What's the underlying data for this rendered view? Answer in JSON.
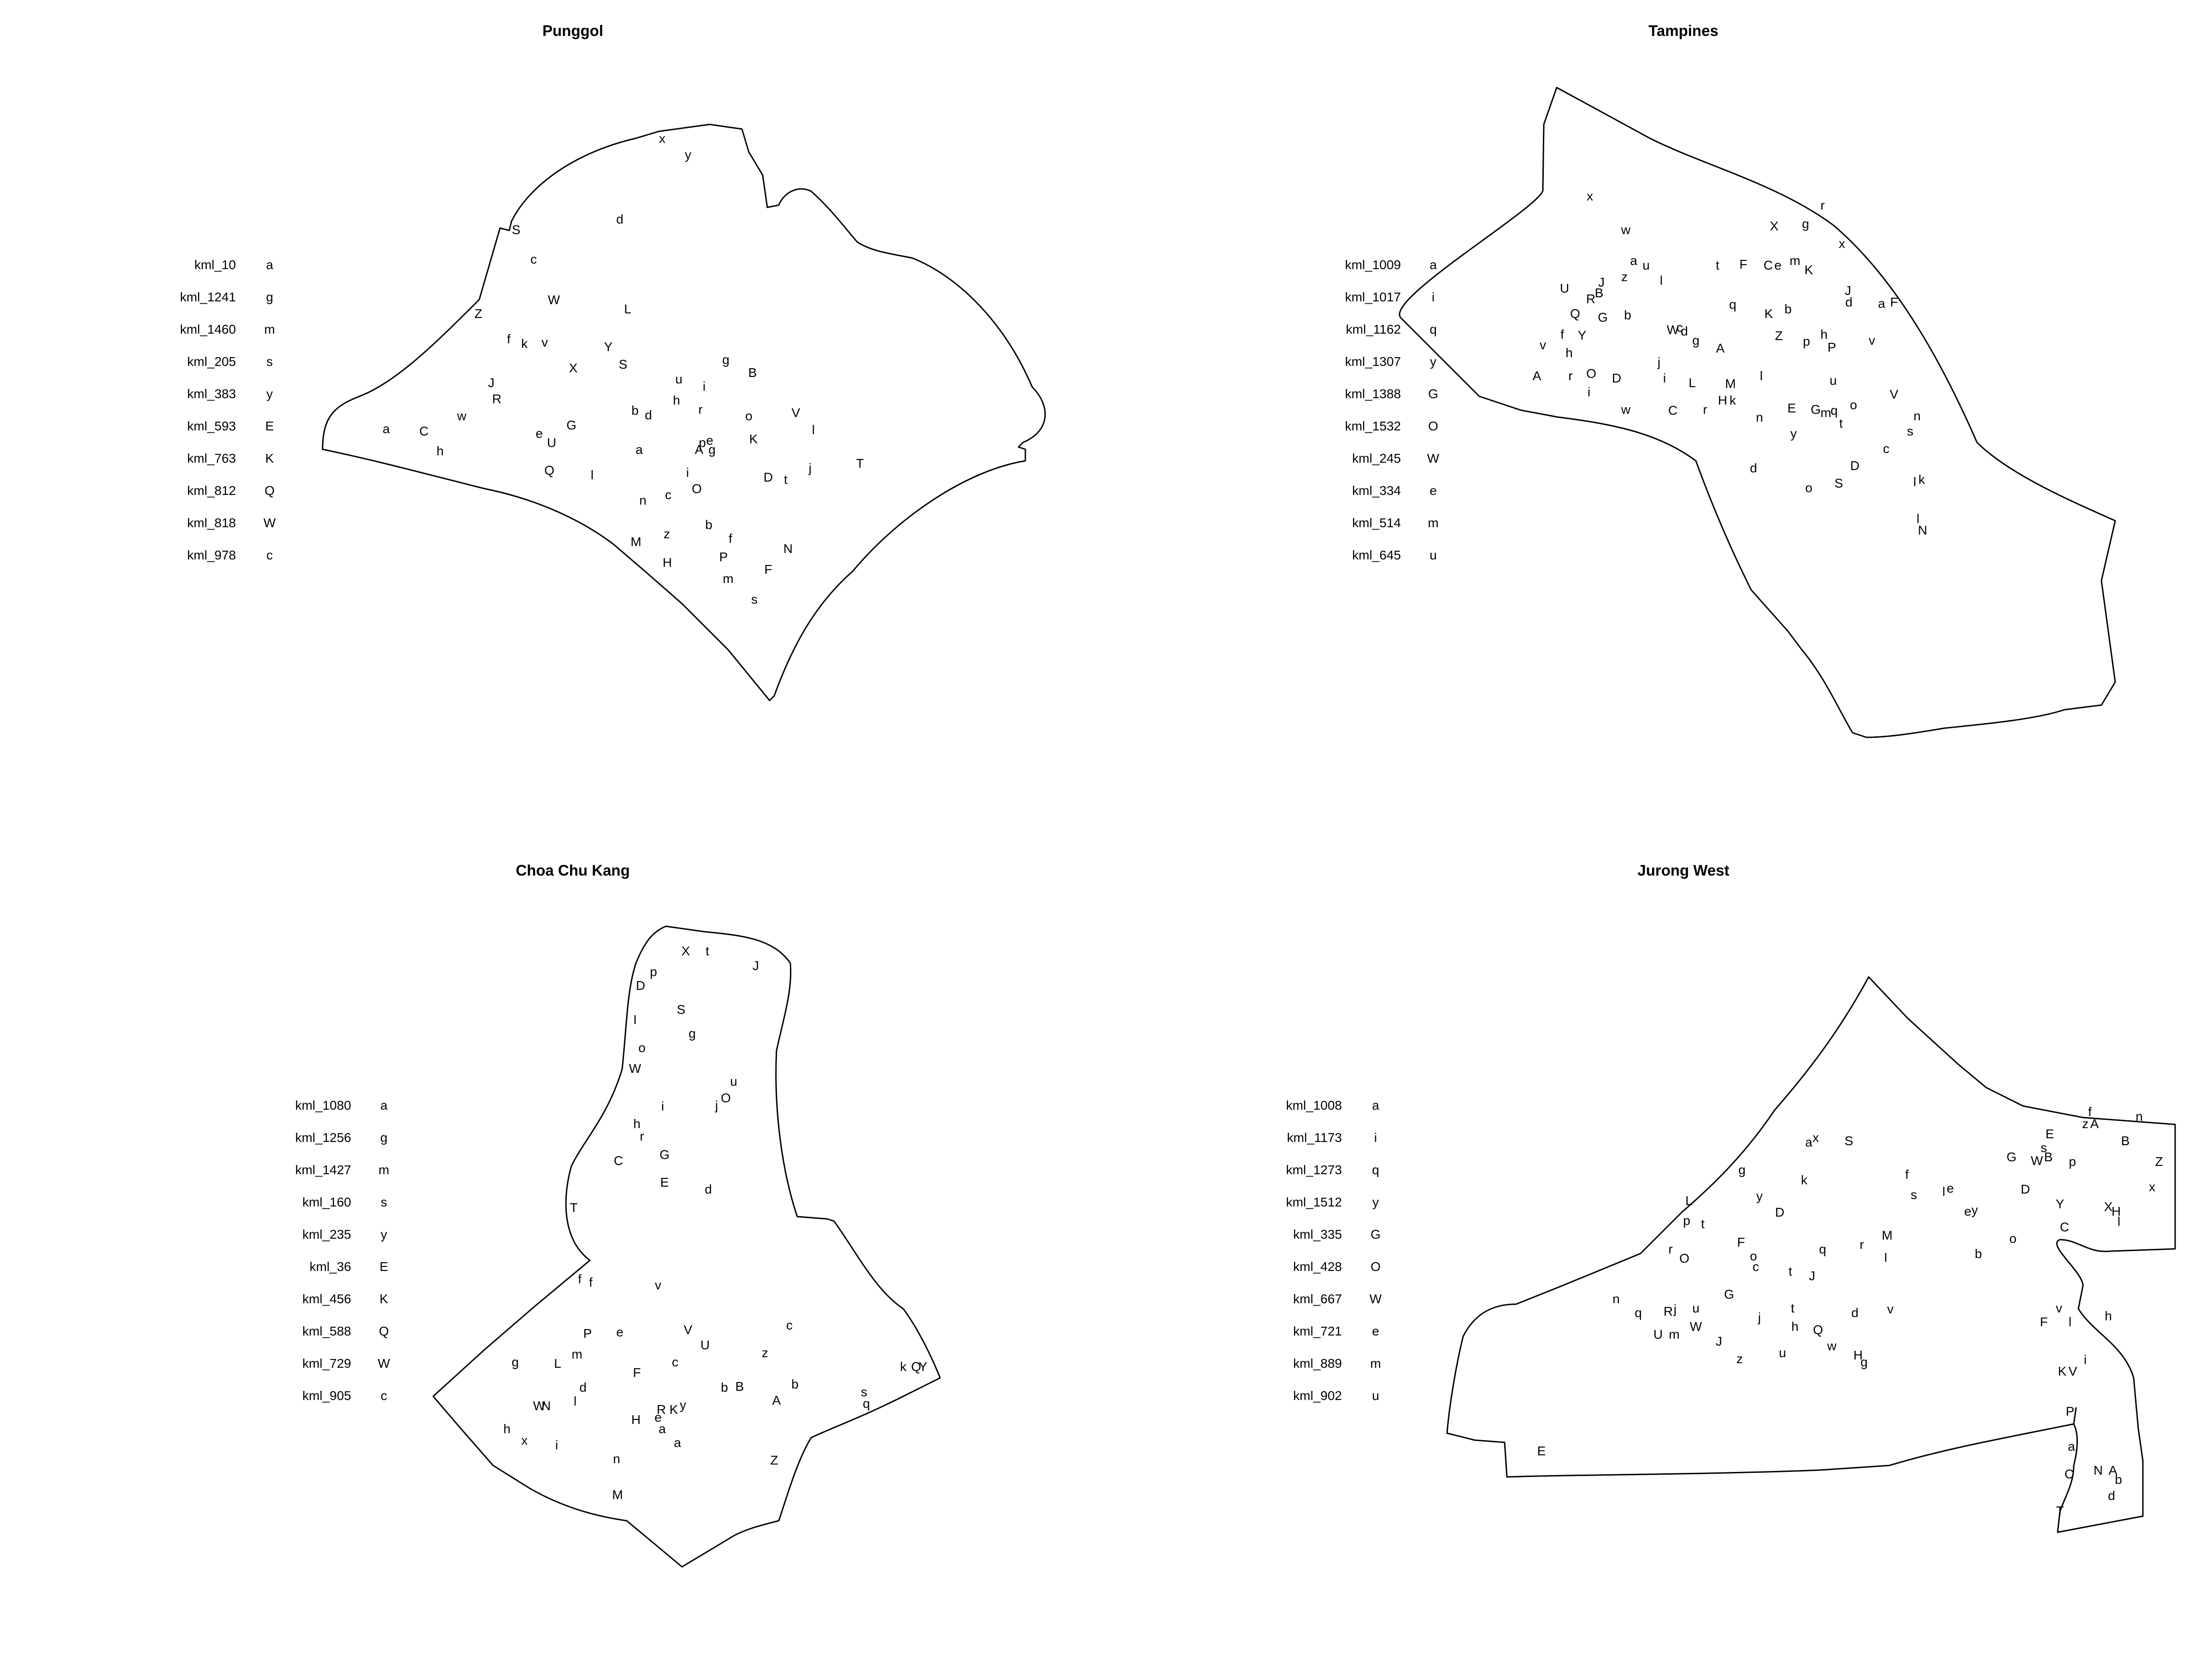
{
  "panels": [
    {
      "id": "punggol",
      "title": "Punggol",
      "legend": [
        {
          "code": "kml_10",
          "letter": "a"
        },
        {
          "code": "kml_1241",
          "letter": "g"
        },
        {
          "code": "kml_1460",
          "letter": "m"
        },
        {
          "code": "kml_205",
          "letter": "s"
        },
        {
          "code": "kml_383",
          "letter": "y"
        },
        {
          "code": "kml_593",
          "letter": "E"
        },
        {
          "code": "kml_763",
          "letter": "K"
        },
        {
          "code": "kml_812",
          "letter": "Q"
        },
        {
          "code": "kml_818",
          "letter": "W"
        },
        {
          "code": "kml_978",
          "letter": "c"
        }
      ],
      "labels": "x y d S c W L Z f k v Y X S J R g B u i h r b d o V w a C G e U l A p e g K h a i Q O j t T l D n c M z b f N H P F m s"
    },
    {
      "id": "tampines",
      "title": "Tampines",
      "legend": [
        {
          "code": "kml_1009",
          "letter": "a"
        },
        {
          "code": "kml_1017",
          "letter": "i"
        },
        {
          "code": "kml_1162",
          "letter": "q"
        },
        {
          "code": "kml_1307",
          "letter": "y"
        },
        {
          "code": "kml_1388",
          "letter": "G"
        },
        {
          "code": "kml_1532",
          "letter": "O"
        },
        {
          "code": "kml_245",
          "letter": "W"
        },
        {
          "code": "kml_334",
          "letter": "e"
        },
        {
          "code": "kml_514",
          "letter": "m"
        },
        {
          "code": "kml_645",
          "letter": "u"
        }
      ],
      "labels": "x r w X g x a u z l t F C e m K U R B J J Q G b q K b J d a F v Y W c d g Z p h P v h p u A j i L M l v A r O D n E G m q f o V i w C r H k s n y t c D d o S O l k l N"
    },
    {
      "id": "choa-chu-kang",
      "title": "Choa Chu Kang",
      "legend": [
        {
          "code": "kml_1080",
          "letter": "a"
        },
        {
          "code": "kml_1256",
          "letter": "g"
        },
        {
          "code": "kml_1427",
          "letter": "m"
        },
        {
          "code": "kml_160",
          "letter": "s"
        },
        {
          "code": "kml_235",
          "letter": "y"
        },
        {
          "code": "kml_36",
          "letter": "E"
        },
        {
          "code": "kml_456",
          "letter": "K"
        },
        {
          "code": "kml_588",
          "letter": "Q"
        },
        {
          "code": "kml_729",
          "letter": "W"
        },
        {
          "code": "kml_905",
          "letter": "c"
        }
      ],
      "labels": "X t J D p S I g o W u j O i h r G C E d T f f v P e V c g L m U z e l d F c A b B s Q Y R K y a W N h x i n Z M"
    },
    {
      "id": "jurong-west",
      "title": "Jurong West",
      "legend": [
        {
          "code": "kml_1008",
          "letter": "a"
        },
        {
          "code": "kml_1173",
          "letter": "i"
        },
        {
          "code": "kml_1273",
          "letter": "q"
        },
        {
          "code": "kml_1512",
          "letter": "y"
        },
        {
          "code": "kml_335",
          "letter": "G"
        },
        {
          "code": "kml_428",
          "letter": "O"
        },
        {
          "code": "kml_667",
          "letter": "W"
        },
        {
          "code": "kml_721",
          "letter": "e"
        },
        {
          "code": "kml_889",
          "letter": "m"
        },
        {
          "code": "kml_902",
          "letter": "u"
        }
      ],
      "labels": "f n z A a x S B E s G W B p Z g k f y l e D x X H L p t D y M C Y o r O F o c t J v G R u n q J h Q d U m W z H g K V P a C N A b d T E"
    }
  ]
}
